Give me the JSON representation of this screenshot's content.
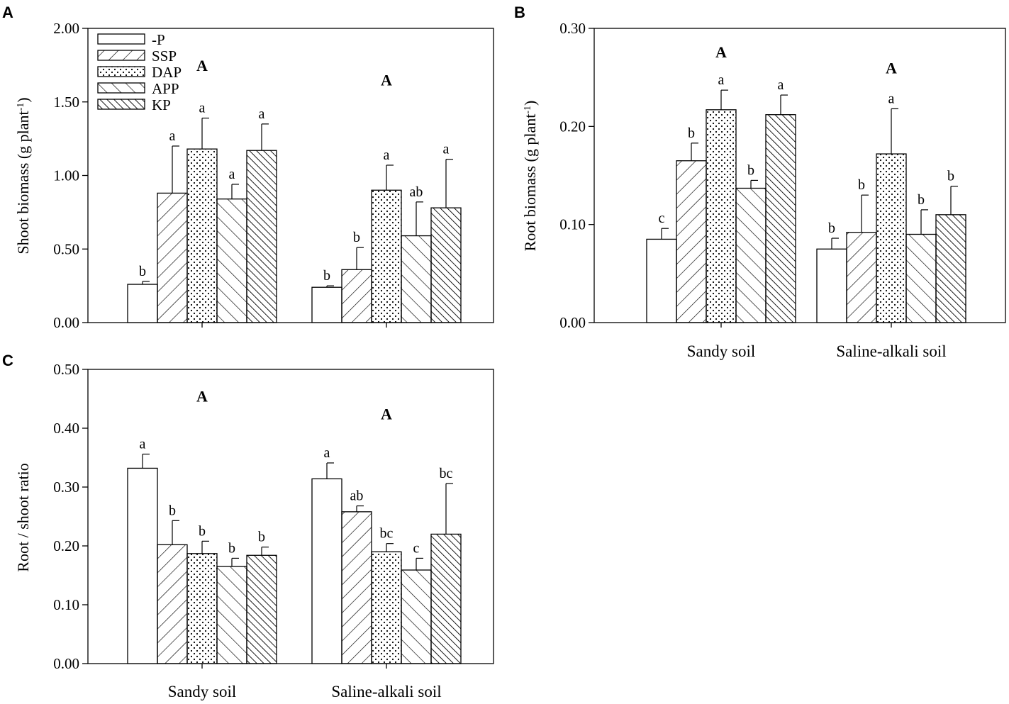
{
  "legend": [
    "-P",
    "SSP",
    "DAP",
    "APP",
    "KP"
  ],
  "patterns": [
    "none",
    "diag-fwd",
    "dots",
    "diag-back",
    "diag-back-dense"
  ],
  "chart_data": [
    {
      "panel": "A",
      "type": "bar",
      "ylabel_main": "Shoot biomass (g plant",
      "ylabel_sup": "-1",
      "ylabel_end": ")",
      "ylim": [
        0,
        2
      ],
      "yticks": [
        "0.00",
        "0.50",
        "1.00",
        "1.50",
        "2.00"
      ],
      "ytick_values": [
        0,
        0.5,
        1,
        1.5,
        2
      ],
      "categories": [
        "Sandy soil",
        "Saline-alkali soil"
      ],
      "show_categories": false,
      "show_legend": true,
      "group_letters": [
        "A",
        "A"
      ],
      "group_letter_values": [
        1.75,
        1.65
      ],
      "series": [
        {
          "name": "-P",
          "values": [
            0.26,
            0.24
          ],
          "errors": [
            0.02,
            0.01
          ],
          "letters": [
            "b",
            "b"
          ]
        },
        {
          "name": "SSP",
          "values": [
            0.88,
            0.36
          ],
          "errors": [
            0.32,
            0.15
          ],
          "letters": [
            "a",
            "b"
          ]
        },
        {
          "name": "DAP",
          "values": [
            1.18,
            0.9
          ],
          "errors": [
            0.21,
            0.17
          ],
          "letters": [
            "a",
            "a"
          ]
        },
        {
          "name": "APP",
          "values": [
            0.84,
            0.59
          ],
          "errors": [
            0.1,
            0.23
          ],
          "letters": [
            "a",
            "ab"
          ]
        },
        {
          "name": "KP",
          "values": [
            1.17,
            0.78
          ],
          "errors": [
            0.18,
            0.33
          ],
          "letters": [
            "a",
            "a"
          ]
        }
      ]
    },
    {
      "panel": "B",
      "type": "bar",
      "ylabel_main": "Root biomass (g plant",
      "ylabel_sup": "-1",
      "ylabel_end": ")",
      "ylim": [
        0,
        0.3
      ],
      "yticks": [
        "0.00",
        "0.10",
        "0.20",
        "0.30"
      ],
      "ytick_values": [
        0,
        0.1,
        0.2,
        0.3
      ],
      "categories": [
        "Sandy soil",
        "Saline-alkali soil"
      ],
      "show_categories": true,
      "show_legend": false,
      "group_letters": [
        "A",
        "A"
      ],
      "group_letter_values": [
        0.276,
        0.26
      ],
      "series": [
        {
          "name": "-P",
          "values": [
            0.085,
            0.075
          ],
          "errors": [
            0.011,
            0.011
          ],
          "letters": [
            "c",
            "b"
          ]
        },
        {
          "name": "SSP",
          "values": [
            0.165,
            0.092
          ],
          "errors": [
            0.018,
            0.038
          ],
          "letters": [
            "b",
            "b"
          ]
        },
        {
          "name": "DAP",
          "values": [
            0.217,
            0.172
          ],
          "errors": [
            0.02,
            0.046
          ],
          "letters": [
            "a",
            "a"
          ]
        },
        {
          "name": "APP",
          "values": [
            0.137,
            0.09
          ],
          "errors": [
            0.008,
            0.025
          ],
          "letters": [
            "b",
            "b"
          ]
        },
        {
          "name": "KP",
          "values": [
            0.212,
            0.11
          ],
          "errors": [
            0.02,
            0.029
          ],
          "letters": [
            "a",
            "b"
          ]
        }
      ]
    },
    {
      "panel": "C",
      "type": "bar",
      "ylabel_main": "Root / shoot ratio",
      "ylabel_sup": "",
      "ylabel_end": "",
      "ylim": [
        0,
        0.5
      ],
      "yticks": [
        "0.00",
        "0.10",
        "0.20",
        "0.30",
        "0.40",
        "0.50"
      ],
      "ytick_values": [
        0,
        0.1,
        0.2,
        0.3,
        0.4,
        0.5
      ],
      "categories": [
        "Sandy soil",
        "Saline-alkali soil"
      ],
      "show_categories": true,
      "show_legend": false,
      "group_letters": [
        "A",
        "A"
      ],
      "group_letter_values": [
        0.455,
        0.425
      ],
      "series": [
        {
          "name": "-P",
          "values": [
            0.332,
            0.314
          ],
          "errors": [
            0.024,
            0.027
          ],
          "letters": [
            "a",
            "a"
          ]
        },
        {
          "name": "SSP",
          "values": [
            0.202,
            0.258
          ],
          "errors": [
            0.041,
            0.01
          ],
          "letters": [
            "b",
            "ab"
          ]
        },
        {
          "name": "DAP",
          "values": [
            0.187,
            0.19
          ],
          "errors": [
            0.021,
            0.014
          ],
          "letters": [
            "b",
            "bc"
          ]
        },
        {
          "name": "APP",
          "values": [
            0.165,
            0.159
          ],
          "errors": [
            0.014,
            0.02
          ],
          "letters": [
            "b",
            "c"
          ]
        },
        {
          "name": "KP",
          "values": [
            0.184,
            0.22
          ],
          "errors": [
            0.014,
            0.086
          ],
          "letters": [
            "b",
            "bc"
          ]
        }
      ]
    }
  ]
}
